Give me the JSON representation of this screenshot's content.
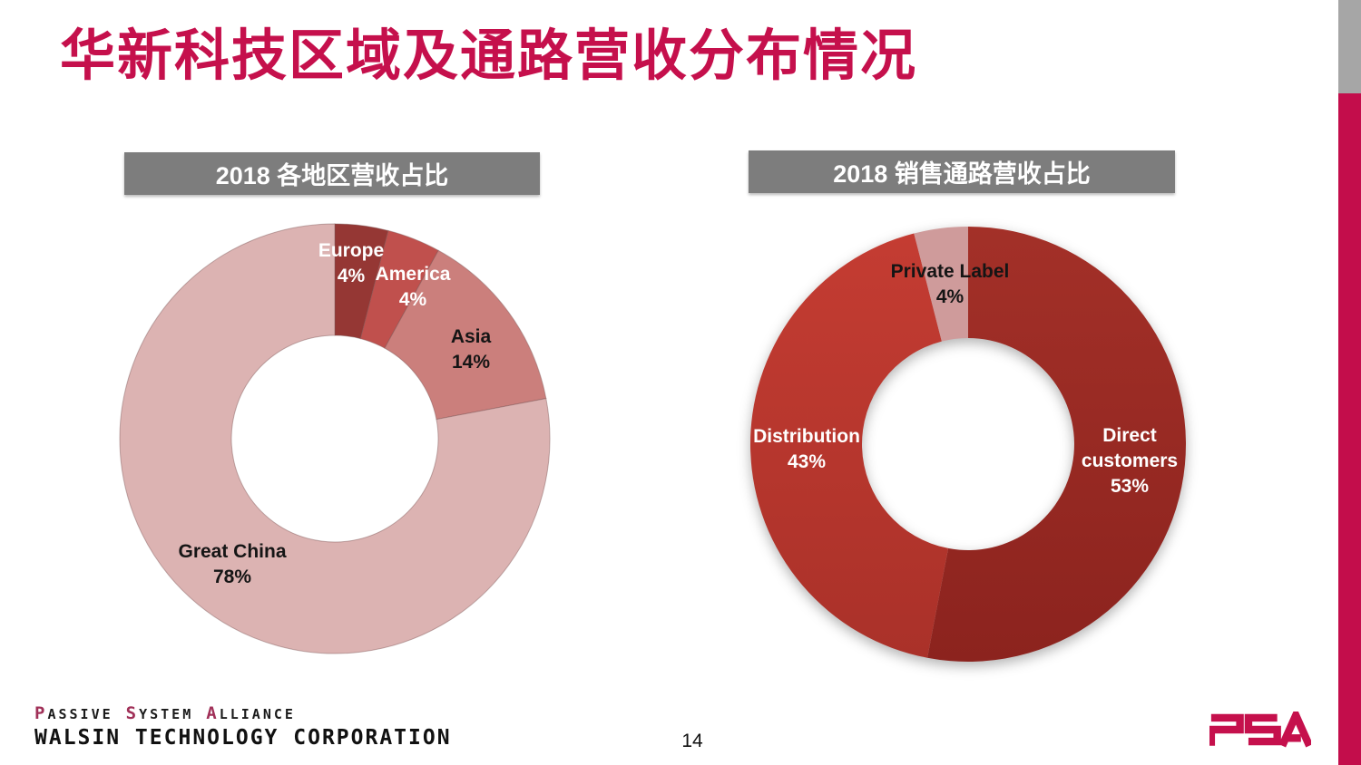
{
  "slide": {
    "title": "华新科技区域及通路营收分布情况",
    "page_number": "14",
    "brand_color": "#c30d4b",
    "accent_gray": "#a6a6a6",
    "header_bg": "#7d7d7d"
  },
  "chart_data": [
    {
      "type": "pie",
      "subtype": "donut",
      "title": "2018 各地区营收占比",
      "legend_position": "none",
      "labels_on_slices": true,
      "segments": [
        {
          "label": "Europe",
          "value": 4,
          "pct": "4%",
          "color": "#953734",
          "text_color": "#ffffff"
        },
        {
          "label": "America",
          "value": 4,
          "pct": "4%",
          "color": "#c0504d",
          "text_color": "#ffffff"
        },
        {
          "label": "Asia",
          "value": 14,
          "pct": "14%",
          "color": "#cb7f7c",
          "text_color": "#151515"
        },
        {
          "label": "Great China",
          "value": 78,
          "pct": "78%",
          "color": "#dcb3b2",
          "text_color": "#151515"
        }
      ]
    },
    {
      "type": "pie",
      "subtype": "donut",
      "title": "2018 销售通路营收占比",
      "legend_position": "none",
      "labels_on_slices": true,
      "segments": [
        {
          "label": "Direct customers",
          "value": 53,
          "pct": "53%",
          "color": "#a33028",
          "color2": "#8c231e",
          "text_color": "#ffffff"
        },
        {
          "label": "Distribution",
          "value": 43,
          "pct": "43%",
          "color": "#c43c32",
          "color2": "#aa3129",
          "text_color": "#ffffff"
        },
        {
          "label": "Private Label",
          "value": 4,
          "pct": "4%",
          "color": "#cf9b9b",
          "text_color": "#151515"
        }
      ]
    }
  ],
  "footer": {
    "alliance_words": [
      {
        "initial": "P",
        "rest": "ASSIVE"
      },
      {
        "initial": "S",
        "rest": "YSTEM"
      },
      {
        "initial": "A",
        "rest": "LLIANCE"
      }
    ],
    "company": "WALSIN TECHNOLOGY CORPORATION",
    "logo_text": "PSA"
  }
}
